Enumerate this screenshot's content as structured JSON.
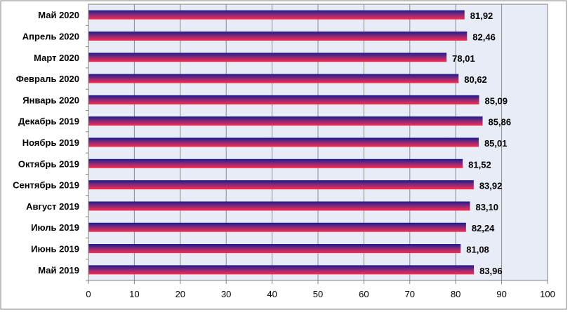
{
  "chart_data": {
    "type": "bar",
    "orientation": "horizontal",
    "categories": [
      "Май 2020",
      "Апрель 2020",
      "Март 2020",
      "Февраль 2020",
      "Январь 2020",
      "Декабрь 2019",
      "Ноябрь 2019",
      "Октябрь 2019",
      "Сентябрь 2019",
      "Август 2019",
      "Июль 2019",
      "Июнь 2019",
      "Май 2019"
    ],
    "values": [
      81.92,
      82.46,
      78.01,
      80.62,
      85.09,
      85.86,
      85.01,
      81.52,
      83.92,
      83.1,
      82.24,
      81.08,
      83.96
    ],
    "value_labels": [
      "81,92",
      "82,46",
      "78,01",
      "80,62",
      "85,09",
      "85,86",
      "85,01",
      "81,52",
      "83,92",
      "83,10",
      "82,24",
      "81,08",
      "83,96"
    ],
    "xlim": [
      0,
      100
    ],
    "x_ticks": [
      "0",
      "10",
      "20",
      "30",
      "40",
      "50",
      "60",
      "70",
      "80",
      "90",
      "100"
    ],
    "title": "",
    "xlabel": "",
    "ylabel": "",
    "grid": "vertical",
    "legend": "none",
    "colors": {
      "bar_top": "#1a1a8c",
      "bar_bottom": "#ff2a4a",
      "plot_background": "#e8ecf6",
      "gridline": "#8a8a8a",
      "axis": "#808080"
    }
  }
}
